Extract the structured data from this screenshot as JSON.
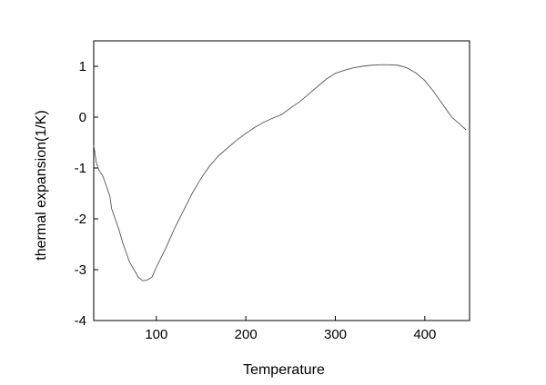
{
  "chart_data": {
    "type": "line",
    "title": "",
    "xlabel": "Temperature",
    "ylabel": "thermal expansion(1/K)",
    "xlim": [
      30,
      450
    ],
    "ylim": [
      -4,
      1.5
    ],
    "xticks": [
      100,
      200,
      300,
      400
    ],
    "yticks": [
      -4,
      -3,
      -2,
      -1,
      0,
      1
    ],
    "grid": false,
    "legend": "none",
    "line_color": "#555555",
    "series": [
      {
        "x": [
          30,
          33,
          36,
          40,
          44,
          48,
          50,
          54,
          58,
          62,
          66,
          70,
          75,
          80,
          85,
          90,
          95,
          100,
          110,
          120,
          130,
          140,
          150,
          160,
          170,
          180,
          190,
          200,
          210,
          220,
          230,
          240,
          250,
          260,
          270,
          280,
          290,
          300,
          310,
          320,
          330,
          340,
          350,
          360,
          370,
          380,
          390,
          400,
          410,
          420,
          430,
          440,
          446
        ],
        "y": [
          -0.55,
          -0.9,
          -1.05,
          -1.15,
          -1.35,
          -1.55,
          -1.8,
          -2.0,
          -2.2,
          -2.45,
          -2.65,
          -2.85,
          -3.0,
          -3.15,
          -3.22,
          -3.2,
          -3.15,
          -2.95,
          -2.6,
          -2.2,
          -1.85,
          -1.5,
          -1.2,
          -0.95,
          -0.75,
          -0.6,
          -0.45,
          -0.32,
          -0.2,
          -0.1,
          -0.02,
          0.05,
          0.18,
          0.3,
          0.45,
          0.6,
          0.75,
          0.86,
          0.92,
          0.97,
          1.0,
          1.02,
          1.03,
          1.03,
          1.02,
          0.97,
          0.87,
          0.72,
          0.5,
          0.25,
          0.0,
          -0.15,
          -0.25
        ]
      }
    ]
  }
}
